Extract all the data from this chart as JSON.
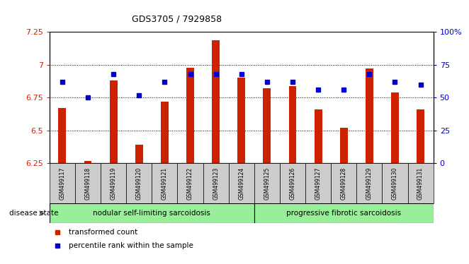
{
  "title": "GDS3705 / 7929858",
  "samples": [
    "GSM499117",
    "GSM499118",
    "GSM499119",
    "GSM499120",
    "GSM499121",
    "GSM499122",
    "GSM499123",
    "GSM499124",
    "GSM499125",
    "GSM499126",
    "GSM499127",
    "GSM499128",
    "GSM499129",
    "GSM499130",
    "GSM499131"
  ],
  "transformed_count": [
    6.67,
    6.27,
    6.88,
    6.39,
    6.72,
    6.98,
    7.19,
    6.9,
    6.82,
    6.84,
    6.66,
    6.52,
    6.97,
    6.79,
    6.66
  ],
  "percentile_rank": [
    62,
    50,
    68,
    52,
    62,
    68,
    68,
    68,
    62,
    62,
    56,
    56,
    68,
    62,
    60
  ],
  "ylim_left": [
    6.25,
    7.25
  ],
  "ylim_right": [
    0,
    100
  ],
  "yticks_left": [
    6.25,
    6.5,
    6.75,
    7.0,
    7.25
  ],
  "ytick_labels_left": [
    "6.25",
    "6.5",
    "6.75",
    "7",
    "7.25"
  ],
  "yticks_right": [
    0,
    25,
    50,
    75,
    100
  ],
  "ytick_labels_right": [
    "0",
    "25",
    "50",
    "75",
    "100%"
  ],
  "bar_color": "#cc2200",
  "dot_color": "#0000cc",
  "group1_label": "nodular self-limiting sarcoidosis",
  "group1_count": 8,
  "group2_label": "progressive fibrotic sarcoidosis",
  "group2_count": 7,
  "group_color": "#99ee99",
  "disease_state_label": "disease state",
  "legend_bar_label": "transformed count",
  "legend_dot_label": "percentile rank within the sample",
  "xticklabel_bg": "#cccccc",
  "bar_width": 0.3
}
